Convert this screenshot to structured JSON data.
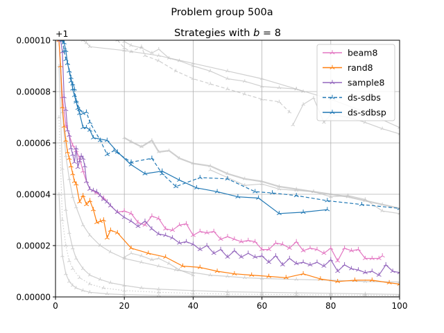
{
  "suptitle": "Problem group 500a",
  "chart_data": {
    "type": "line",
    "title_prefix": "Strategies with ",
    "title_var": "b",
    "title_suffix": " = 8",
    "offset_label": "+1",
    "xlim": [
      0,
      100
    ],
    "ylim": [
      0,
      0.0001
    ],
    "xticks": [
      "0",
      "20",
      "40",
      "60",
      "80",
      "100"
    ],
    "xtick_values": [
      0,
      20,
      40,
      60,
      80,
      100
    ],
    "yticks": [
      "0.00000",
      "0.00002",
      "0.00004",
      "0.00006",
      "0.00008",
      "0.00010"
    ],
    "ytick_values": [
      0,
      2e-05,
      4e-05,
      6e-05,
      8e-05,
      0.0001
    ],
    "grid": true,
    "legend_position": "top-right",
    "background_series_color": "#bfbfbf",
    "background_series": [
      {
        "style": "solid",
        "x": [
          8,
          9,
          10,
          20,
          30,
          40,
          50,
          60,
          70,
          80,
          90,
          100
        ],
        "y": [
          0.0001,
          9.9e-05,
          9.75e-05,
          9.6e-05,
          9.4e-05,
          9.1e-05,
          8.8e-05,
          8.5e-05,
          8.1e-05,
          7.7e-05,
          7.2e-05,
          6.6e-05
        ]
      },
      {
        "style": "solid",
        "x": [
          20,
          22,
          25,
          28,
          30,
          33,
          36,
          40,
          45,
          50,
          55,
          60,
          65,
          70,
          72
        ],
        "y": [
          9.95e-05,
          9.8e-05,
          9.7e-05,
          9.5e-05,
          9.65e-05,
          9.3e-05,
          9.2e-05,
          9e-05,
          8.8e-05,
          8.5e-05,
          8.4e-05,
          8.2e-05,
          8.15e-05,
          8.1e-05,
          8e-05
        ]
      },
      {
        "style": "solid",
        "x": [
          69,
          72,
          75,
          78,
          80,
          85,
          90,
          95,
          100
        ],
        "y": [
          6.7e-05,
          7.5e-05,
          7.75e-05,
          6.8e-05,
          7.1e-05,
          7e-05,
          6.8e-05,
          6.55e-05,
          6.35e-05
        ]
      },
      {
        "style": "dashed",
        "x": [
          18,
          20,
          22,
          25,
          26,
          30,
          35,
          40,
          45,
          50,
          55,
          60,
          65,
          68
        ],
        "y": [
          0.0001,
          9.7e-05,
          9.55e-05,
          9.75e-05,
          9.4e-05,
          9.2e-05,
          8.8e-05,
          8.5e-05,
          8.3e-05,
          8.1e-05,
          7.9e-05,
          7.7e-05,
          7.6e-05,
          7.2e-05
        ]
      },
      {
        "style": "solid",
        "x": [
          20,
          22,
          25,
          28,
          30,
          33,
          36,
          40,
          45,
          50,
          55,
          60,
          65,
          70,
          75,
          80,
          85,
          90,
          95,
          100
        ],
        "y": [
          6.2e-05,
          6.05e-05,
          5.85e-05,
          6.1e-05,
          5.65e-05,
          5.7e-05,
          5.4e-05,
          5.2e-05,
          5.1e-05,
          4.8e-05,
          4.6e-05,
          4.5e-05,
          4.3e-05,
          4.2e-05,
          4.1e-05,
          4e-05,
          3.9e-05,
          3.75e-05,
          3.6e-05,
          3.45e-05
        ]
      },
      {
        "style": "solid",
        "x": [
          45,
          50,
          55,
          60,
          65,
          70,
          75,
          80,
          85,
          90,
          95,
          100
        ],
        "y": [
          4.95e-05,
          4.65e-05,
          4.35e-05,
          4.4e-05,
          4.2e-05,
          4.15e-05,
          4.1e-05,
          3.9e-05,
          3.95e-05,
          3.8e-05,
          3.35e-05,
          3.25e-05
        ]
      },
      {
        "style": "solid",
        "x": [
          1,
          2,
          3,
          4,
          5,
          6,
          8,
          10,
          13,
          16,
          20,
          25,
          30,
          35,
          40,
          45,
          50,
          55,
          60,
          70,
          80,
          90,
          100
        ],
        "y": [
          0.0001,
          7.2e-05,
          5.5e-05,
          4.6e-05,
          3.9e-05,
          3.5e-05,
          2.8e-05,
          2.4e-05,
          2e-05,
          1.75e-05,
          1.5e-05,
          1.35e-05,
          1.2e-05,
          1.05e-05,
          9.5e-06,
          8.5e-06,
          8e-06,
          7.5e-06,
          7.2e-06,
          6.8e-06,
          6.5e-06,
          6e-06,
          5.8e-06
        ]
      },
      {
        "style": "solid",
        "x": [
          1,
          2,
          3,
          4,
          5,
          6,
          8,
          10,
          13,
          16,
          20,
          25,
          30,
          40,
          50,
          60,
          70,
          80,
          90,
          100
        ],
        "y": [
          9e-05,
          5e-05,
          3.4e-05,
          2.5e-05,
          1.9e-05,
          1.5e-05,
          1.1e-05,
          8.5e-06,
          6.8e-06,
          5.5e-06,
          4.5e-06,
          3.5e-06,
          3e-06,
          2.5e-06,
          2e-06,
          1.8e-06,
          1.6e-06,
          1.4e-06,
          1.2e-06,
          1e-06
        ]
      },
      {
        "style": "dotted",
        "x": [
          1,
          2,
          3,
          4,
          5,
          7,
          10,
          14,
          20,
          30,
          40,
          50,
          60,
          70,
          80,
          90,
          100
        ],
        "y": [
          7e-05,
          3e-05,
          2e-05,
          1.4e-05,
          1.1e-05,
          7.5e-06,
          5e-06,
          3.5e-06,
          2.5e-06,
          1.8e-06,
          1.4e-06,
          1.1e-06,
          1e-06,
          9e-07,
          8e-07,
          7e-07,
          6e-07
        ]
      },
      {
        "style": "solid",
        "x": [
          1,
          2,
          3,
          4,
          5,
          6,
          8,
          10,
          15,
          20,
          30,
          40,
          50,
          60,
          70,
          80,
          90,
          100
        ],
        "y": [
          4e-05,
          1.6e-05,
          9e-06,
          6e-06,
          4.5e-06,
          3.5e-06,
          2.5e-06,
          1.8e-06,
          1.2e-06,
          9e-07,
          6e-07,
          5e-07,
          4e-07,
          3e-07,
          3e-07,
          2e-07,
          2e-07,
          2e-07
        ]
      },
      {
        "style": "solid",
        "x": [
          20,
          22,
          25,
          28,
          30,
          33,
          36,
          40
        ],
        "y": [
          1.55e-05,
          1.7e-05,
          1.6e-05,
          1.45e-05,
          1.5e-05,
          1.3e-05,
          1.05e-05,
          8.5e-06
        ]
      }
    ],
    "series": [
      {
        "name": "beam8",
        "color": "#e377c2",
        "style": "solid",
        "x": [
          1,
          2,
          3,
          4,
          5,
          6,
          7,
          8,
          9,
          10,
          12,
          14,
          16,
          18,
          20,
          22,
          24,
          26,
          28,
          30,
          32,
          34,
          36,
          38,
          40,
          42,
          44,
          46,
          48,
          50,
          52,
          54,
          56,
          58,
          60,
          62,
          64,
          66,
          68,
          70,
          72,
          74,
          76,
          78,
          80,
          82,
          84,
          86,
          88,
          90,
          92,
          94,
          95
        ],
        "y": [
          0.0001,
          7.8e-05,
          6.7e-05,
          6.3e-05,
          5.9e-05,
          5.7e-05,
          5.4e-05,
          4.9e-05,
          4.5e-05,
          4.2e-05,
          4.05e-05,
          3.85e-05,
          3.55e-05,
          3.3e-05,
          3.35e-05,
          3.25e-05,
          2.9e-05,
          2.8e-05,
          3.15e-05,
          3.05e-05,
          2.65e-05,
          2.6e-05,
          2.8e-05,
          2.85e-05,
          2.4e-05,
          2.55e-05,
          2.5e-05,
          2.55e-05,
          2.25e-05,
          2.35e-05,
          2.25e-05,
          2.15e-05,
          2.2e-05,
          2.15e-05,
          1.85e-05,
          1.85e-05,
          2.1e-05,
          2.05e-05,
          1.9e-05,
          2.15e-05,
          1.8e-05,
          1.9e-05,
          1.85e-05,
          1.7e-05,
          1.9e-05,
          1.4e-05,
          1.9e-05,
          1.8e-05,
          1.85e-05,
          1.5e-05,
          1.5e-05,
          1.5e-05,
          1.6e-05
        ]
      },
      {
        "name": "rand8",
        "color": "#ff7f0e",
        "style": "solid",
        "x": [
          1,
          1.5,
          2,
          2.5,
          3,
          3.5,
          4,
          4.5,
          5,
          5.5,
          6,
          7,
          8,
          9,
          10,
          11,
          12,
          13,
          14,
          15,
          16,
          18,
          22,
          27,
          32,
          37,
          42,
          47,
          52,
          57,
          62,
          67,
          72,
          77,
          82,
          87,
          92,
          97,
          100
        ],
        "y": [
          0.0001,
          9e-05,
          7.4e-05,
          6.65e-05,
          6.1e-05,
          5.65e-05,
          5.4e-05,
          5.1e-05,
          4.8e-05,
          4.5e-05,
          4.4e-05,
          3.7e-05,
          3.95e-05,
          3.6e-05,
          3.75e-05,
          3.4e-05,
          2.9e-05,
          2.95e-05,
          3e-05,
          2.3e-05,
          2.6e-05,
          2.5e-05,
          1.9e-05,
          1.7e-05,
          1.55e-05,
          1.2e-05,
          1.15e-05,
          1e-05,
          9e-06,
          8.5e-06,
          8e-06,
          7.5e-06,
          9e-06,
          7e-06,
          6e-06,
          6.5e-06,
          6.5e-06,
          5.5e-06,
          5e-06
        ]
      },
      {
        "name": "sample8",
        "color": "#9467bd",
        "style": "solid",
        "x": [
          1.5,
          2,
          2.5,
          3,
          3.5,
          4,
          4.5,
          5,
          5.5,
          6,
          6.5,
          7,
          7.5,
          8,
          8.5,
          9,
          10,
          11,
          12,
          13,
          14,
          15,
          16,
          18,
          20,
          22,
          24,
          26,
          28,
          30,
          32,
          34,
          36,
          38,
          40,
          42,
          44,
          46,
          48,
          50,
          52,
          54,
          56,
          58,
          60,
          62,
          64,
          66,
          68,
          70,
          72,
          74,
          76,
          78,
          80,
          82,
          84,
          86,
          88,
          90,
          92,
          94,
          96,
          98,
          100
        ],
        "y": [
          0.0001,
          9.55e-05,
          7.8e-05,
          7.3e-05,
          6.5e-05,
          6.3e-05,
          5.8e-05,
          5.55e-05,
          5.25e-05,
          5.8e-05,
          5.05e-05,
          5.3e-05,
          5.5e-05,
          5.4e-05,
          5.1e-05,
          4.5e-05,
          4.2e-05,
          4.15e-05,
          4.1e-05,
          3.95e-05,
          3.8e-05,
          3.7e-05,
          3.55e-05,
          3.3e-05,
          3.1e-05,
          2.95e-05,
          2.75e-05,
          2.95e-05,
          2.65e-05,
          2.45e-05,
          2.4e-05,
          2.3e-05,
          2.1e-05,
          2.15e-05,
          2.05e-05,
          1.85e-05,
          2e-05,
          1.7e-05,
          1.85e-05,
          1.55e-05,
          1.8e-05,
          1.55e-05,
          1.7e-05,
          1.55e-05,
          1.6e-05,
          1.35e-05,
          1.6e-05,
          1.25e-05,
          1.5e-05,
          1.3e-05,
          1.35e-05,
          1.25e-05,
          1.35e-05,
          1.2e-05,
          1.45e-05,
          1e-05,
          1.25e-05,
          1.1e-05,
          1.05e-05,
          9.5e-06,
          1e-05,
          8.5e-06,
          1.25e-05,
          1e-05,
          9.5e-06
        ]
      },
      {
        "name": "ds-sdbs",
        "color": "#1f77b4",
        "style": "dashed",
        "x": [
          2,
          2.5,
          3,
          3.5,
          4,
          4.5,
          5,
          5.5,
          6,
          7,
          8,
          9,
          10,
          13,
          15,
          17,
          22,
          28,
          31,
          35,
          42,
          50,
          58,
          63,
          70,
          79,
          89,
          100
        ],
        "y": [
          0.0001,
          9.6e-05,
          9.25e-05,
          9.1e-05,
          8.8e-05,
          8.4e-05,
          8.3e-05,
          8.1e-05,
          7.65e-05,
          7.3e-05,
          7.15e-05,
          7.2e-05,
          6.8e-05,
          6.1e-05,
          5.55e-05,
          5.7e-05,
          5.25e-05,
          5.4e-05,
          4.8e-05,
          4.3e-05,
          4.65e-05,
          4.6e-05,
          4.1e-05,
          4.05e-05,
          3.95e-05,
          3.75e-05,
          3.6e-05,
          3.45e-05
        ]
      },
      {
        "name": "ds-sdbsp",
        "color": "#1f77b4",
        "style": "solid",
        "x": [
          2,
          2.5,
          3,
          3.5,
          4,
          4.5,
          5,
          5.5,
          6,
          6.5,
          7,
          8,
          9,
          10,
          11,
          15,
          18,
          22,
          26,
          31,
          36,
          41,
          47,
          53,
          59,
          65,
          72,
          79
        ],
        "y": [
          0.0001,
          9.9e-05,
          9.6e-05,
          9.1e-05,
          8.8e-05,
          8.55e-05,
          8.1e-05,
          7.85e-05,
          7.6e-05,
          7.35e-05,
          7.15e-05,
          6.6e-05,
          6.6e-05,
          6.5e-05,
          6.2e-05,
          6.1e-05,
          5.65e-05,
          5.15e-05,
          4.8e-05,
          4.9e-05,
          4.55e-05,
          4.25e-05,
          4.1e-05,
          3.9e-05,
          3.85e-05,
          3.25e-05,
          3.3e-05,
          3.4e-05
        ]
      }
    ]
  }
}
